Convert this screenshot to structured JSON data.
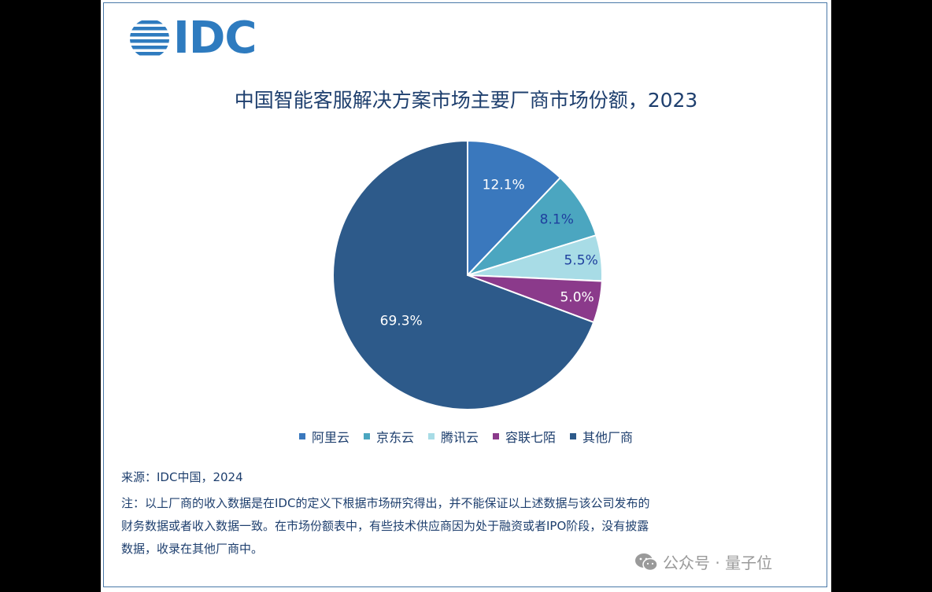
{
  "logo": {
    "text": "IDC"
  },
  "title": "中国智能客服解决方案市场主要厂商市场份额，2023",
  "chart_data": {
    "type": "pie",
    "title": "中国智能客服解决方案市场主要厂商市场份额，2023",
    "slices": [
      {
        "label": "阿里云",
        "value": 12.1,
        "display": "12.1%",
        "color": "#3a78bd",
        "label_color": "#ffffff"
      },
      {
        "label": "京东云",
        "value": 8.1,
        "display": "8.1%",
        "color": "#4ba6c0",
        "label_color": "#1e3f9e"
      },
      {
        "label": "腾讯云",
        "value": 5.5,
        "display": "5.5%",
        "color": "#a8dce6",
        "label_color": "#1e3f9e"
      },
      {
        "label": "容联七陌",
        "value": 5.0,
        "display": "5.0%",
        "color": "#8b3a8b",
        "label_color": "#ffffff"
      },
      {
        "label": "其他厂商",
        "value": 69.3,
        "display": "69.3%",
        "color": "#2d5a8a",
        "label_color": "#ffffff"
      }
    ],
    "start_angle_deg": 0,
    "direction": "clockwise",
    "legend_position": "bottom"
  },
  "source": "来源：IDC中国，2024",
  "note_lines": [
    "注：以上厂商的收入数据是在IDC的定义下根据市场研究得出，并不能保证以上述数据与该公司发布的",
    "财务数据或者收入数据一致。在市场份额表中，有些技术供应商因为处于融资或者IPO阶段，没有披露",
    "数据，收录在其他厂商中。"
  ],
  "watermark": {
    "text": "公众号 · 量子位"
  }
}
